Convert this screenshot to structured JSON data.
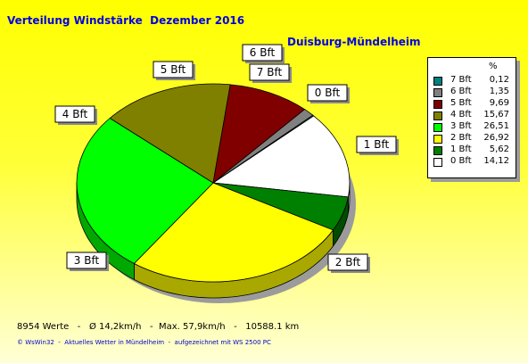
{
  "title": "Verteilung Windstärke  Dezember 2016",
  "station": "Duisburg-Mündelheim",
  "legend_header": "%",
  "footer_stats": "8954 Werte   -   Ø 14,2km/h   -  Max. 57,9km/h   -   10588.1 km",
  "footer_credit": "© WsWin32  -  Aktuelles Wetter in Mündelheim  -  aufgezeichnet mit WS 2500 PC",
  "chart_data": {
    "type": "pie",
    "title": "Verteilung Windstärke  Dezember 2016",
    "slices": [
      {
        "label": "0 Bft",
        "legend_value": "14,12",
        "value": 14.12,
        "color": "#ffffff",
        "shade": "#c8c8c8"
      },
      {
        "label": "1 Bft",
        "legend_value": "5,62",
        "value": 5.62,
        "color": "#008000",
        "shade": "#004d00"
      },
      {
        "label": "2 Bft",
        "legend_value": "26,92",
        "value": 26.92,
        "color": "#ffff00",
        "shade": "#a8a800"
      },
      {
        "label": "3 Bft",
        "legend_value": "26,51",
        "value": 26.51,
        "color": "#00ff00",
        "shade": "#00a800"
      },
      {
        "label": "4 Bft",
        "legend_value": "15,67",
        "value": 15.67,
        "color": "#808000",
        "shade": "#4d4d00"
      },
      {
        "label": "5 Bft",
        "legend_value": "9,69",
        "value": 9.69,
        "color": "#800000",
        "shade": "#4d0000"
      },
      {
        "label": "6 Bft",
        "legend_value": "1,35",
        "value": 1.35,
        "color": "#808080",
        "shade": "#505050"
      },
      {
        "label": "7 Bft",
        "legend_value": "0,12",
        "value": 0.12,
        "color": "#008080",
        "shade": "#004d4d"
      }
    ]
  }
}
